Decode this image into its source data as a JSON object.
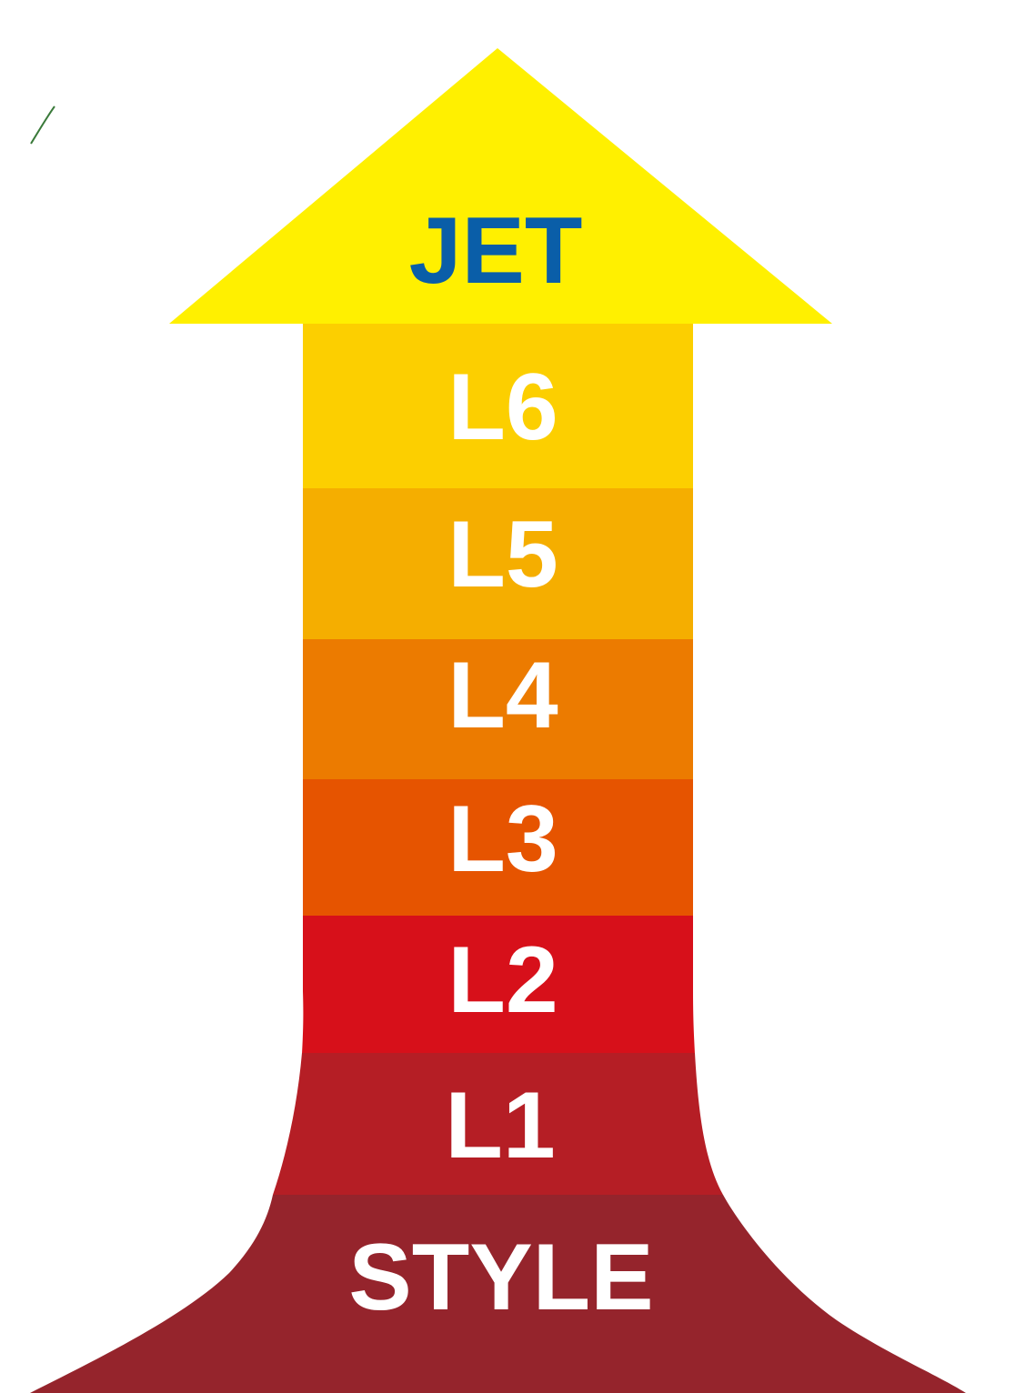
{
  "arrow_head": {
    "label": "JET"
  },
  "levels": [
    {
      "label": "L6"
    },
    {
      "label": "L5"
    },
    {
      "label": "L4"
    },
    {
      "label": "L3"
    },
    {
      "label": "L2"
    },
    {
      "label": "L1"
    },
    {
      "label": "STYLE"
    }
  ]
}
